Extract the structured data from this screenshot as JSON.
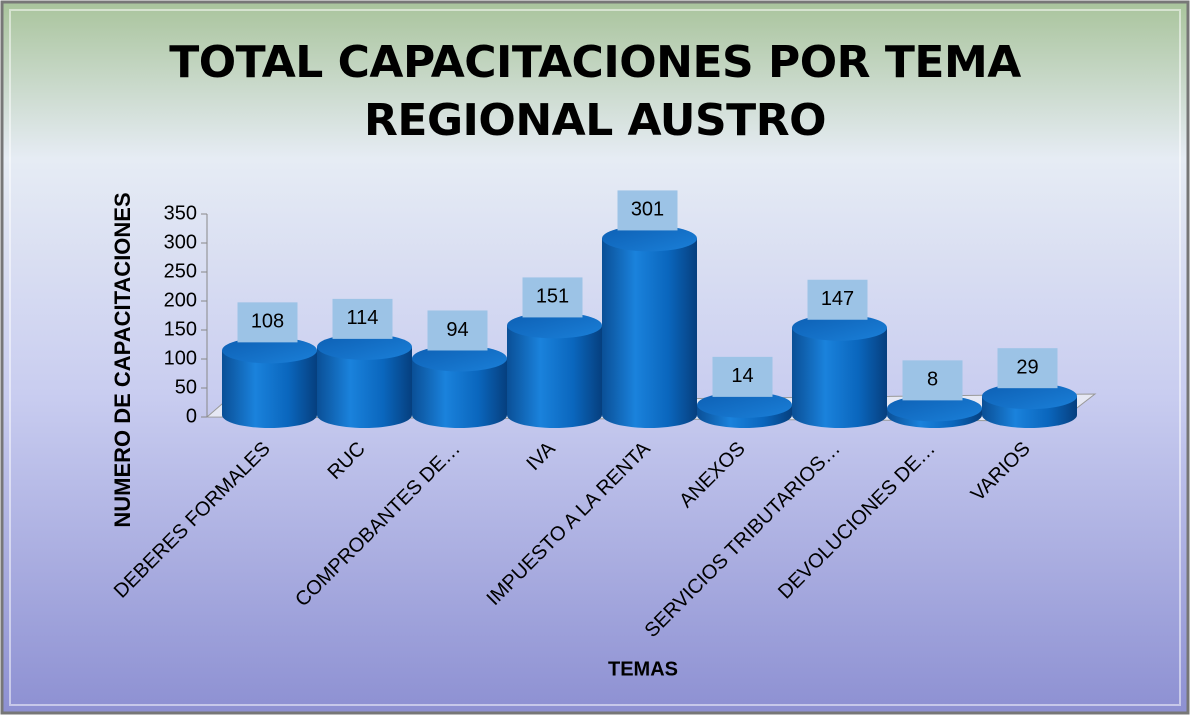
{
  "chart_data": {
    "type": "bar",
    "title": "TOTAL CAPACITACIONES POR TEMA REGIONAL AUSTRO",
    "x_label": "TEMAS",
    "y_label": "NUMERO DE CAPACITACIONES",
    "categories": [
      "DEBERES FORMALES",
      "RUC",
      "COMPROBANTES DE…",
      "IVA",
      "IMPUESTO A LA RENTA",
      "ANEXOS",
      "SERVICIOS TRIBUTARIOS…",
      "DEVOLUCIONES DE…",
      "VARIOS"
    ],
    "values": [
      108,
      114,
      94,
      151,
      301,
      14,
      147,
      8,
      29
    ],
    "color": "#0a6cc4",
    "ylim": [
      0,
      350
    ],
    "yticks": [
      0,
      50,
      100,
      150,
      200,
      250,
      300,
      350
    ]
  }
}
